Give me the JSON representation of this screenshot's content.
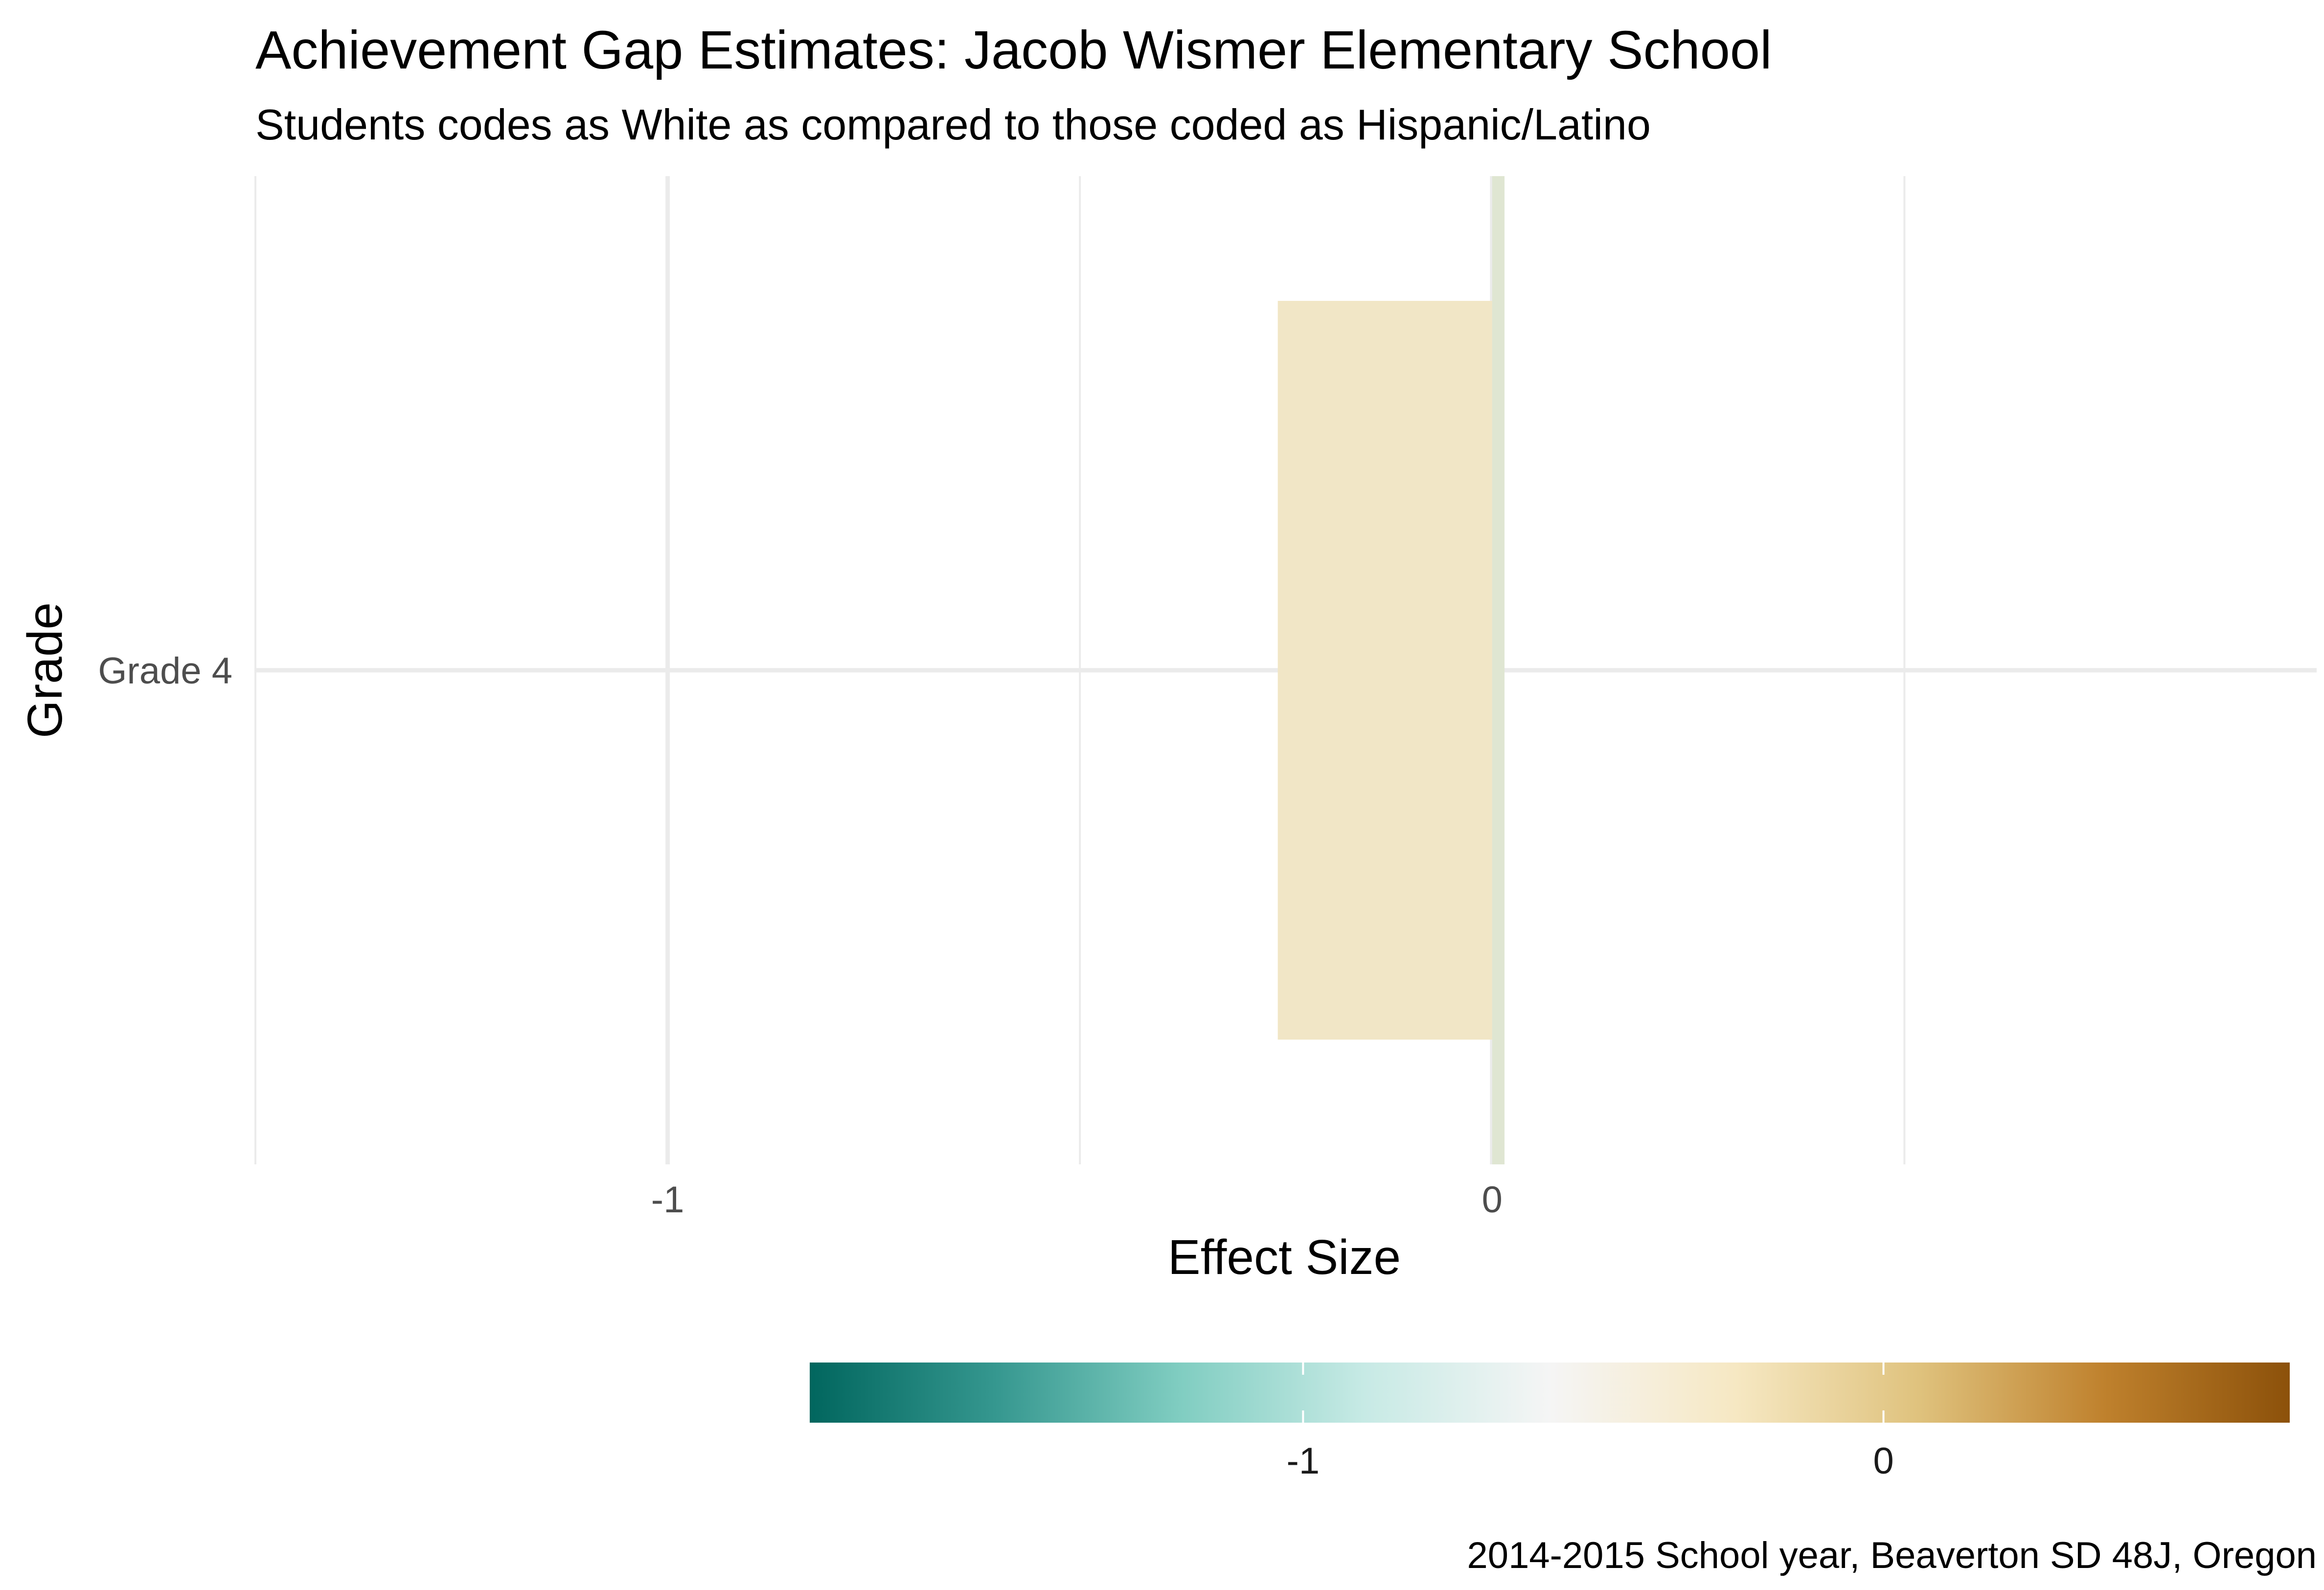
{
  "chart_data": {
    "type": "bar",
    "orientation": "horizontal",
    "title": "Achievement Gap Estimates: Jacob Wismer Elementary School",
    "subtitle": "Students codes as White as compared to those coded as Hispanic/Latino",
    "xlabel": "Effect Size",
    "ylabel": "Grade",
    "caption": "2014-2015 School year, Beaverton SD 48J, Oregon",
    "categories": [
      "Grade 4"
    ],
    "bars": [
      {
        "category": "Grade 4",
        "value": -0.26,
        "color": "#f1e6c6"
      },
      {
        "category": "Grade 4",
        "value": 0.015,
        "color": "#dfe6d2"
      }
    ],
    "xlim": [
      -1.5,
      1.0
    ],
    "x_ticks": [
      -1,
      0
    ],
    "x_tick_labels": [
      "-1",
      "0"
    ],
    "x_minor_ticks": [
      -1.5,
      -0.5,
      0.5
    ],
    "grid": true,
    "legend": {
      "type": "colorbar",
      "placement": "bottom",
      "range": [
        -1.85,
        0.7
      ],
      "ticks": [
        -1,
        0
      ],
      "tick_labels": [
        "-1",
        "0"
      ],
      "palette": [
        "#01665e",
        "#35978f",
        "#80cdc1",
        "#c7eae5",
        "#f5f5f5",
        "#f6e8c3",
        "#dfc27d",
        "#bf812d",
        "#8c510a"
      ]
    }
  }
}
